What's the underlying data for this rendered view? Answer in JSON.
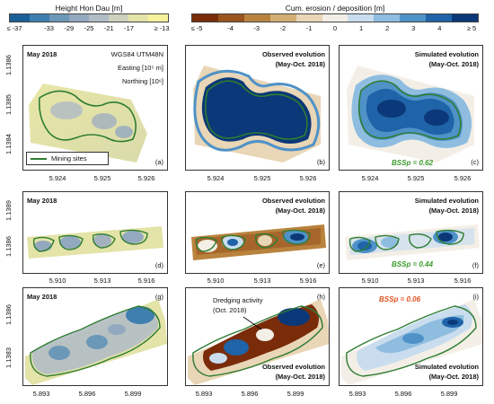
{
  "colorbar_height": {
    "title": "Height Hon Dau [m]",
    "ticks": [
      "≤ -37",
      "-33",
      "-29",
      "-25",
      "-21",
      "-17",
      "≥ -13"
    ],
    "colors": [
      "#1b5f98",
      "#3f7fb0",
      "#6c98b8",
      "#93a9bf",
      "#b2bcc4",
      "#cdd0bc",
      "#e4e3a8",
      "#f6f29c"
    ]
  },
  "colorbar_erosion": {
    "title": "Cum. erosion / deposition [m]",
    "ticks": [
      "≤ -5",
      "-4",
      "-3",
      "-2",
      "-1",
      "0",
      "1",
      "2",
      "3",
      "4",
      "≥ 5"
    ],
    "colors": [
      "#7a2c0a",
      "#9a5420",
      "#b9833e",
      "#d3ad74",
      "#e9d6b6",
      "#f3efe7",
      "#c9ddee",
      "#8fbde0",
      "#4f92c8",
      "#1f63a8",
      "#0b3878"
    ]
  },
  "row1": {
    "date": "May 2018",
    "crs": "WGS84 UTM48N",
    "easting": "Easting [10⁵ m]",
    "northing": "Northing [10⁶]",
    "legend": "Mining sites",
    "xticks": [
      "5.924",
      "5.925",
      "5.926"
    ],
    "yticks": [
      "1.1384",
      "1.1385",
      "1.1386"
    ],
    "observed_title": [
      "Observed evolution",
      "(May-Oct. 2018)"
    ],
    "simulated_title": [
      "Simulated evolution",
      "(May-Oct. 2018)"
    ],
    "bss": "BSSp = 0.62",
    "panels": [
      "(a)",
      "(b)",
      "(c)"
    ]
  },
  "row2": {
    "date": "May 2018",
    "xticks": [
      "5.910",
      "5.913",
      "5.916"
    ],
    "yticks": [
      "1.1386",
      "1.1389"
    ],
    "observed_title": [
      "Observed evolution",
      "(May-Oct. 2018)"
    ],
    "simulated_title": [
      "Simulated evolution",
      "(May-Oct. 2018)"
    ],
    "bss": "BSSp = 0.44",
    "panels": [
      "(d)",
      "(e)",
      "(f)"
    ]
  },
  "row3": {
    "date": "May 2018",
    "dredging": [
      "Dredging activity",
      "(Oct. 2018)"
    ],
    "xticks": [
      "5.893",
      "5.896",
      "5.899"
    ],
    "yticks": [
      "1.1383",
      "1.1386"
    ],
    "observed_title": [
      "Observed evolution",
      "(May-Oct. 2018)"
    ],
    "simulated_title": [
      "Simulated evolution",
      "(May-Oct. 2018)"
    ],
    "bss": "BSSp = 0.06",
    "panels": [
      "(g)",
      "(h)",
      "(i)"
    ]
  },
  "colors": {
    "site_outline": "#2e7d32",
    "bss_good": "#3a9a2a",
    "bss_poor": "#e0521e"
  }
}
